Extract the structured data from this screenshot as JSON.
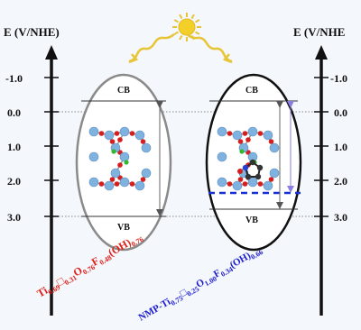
{
  "axes": {
    "left_title": "E (V/NHE)",
    "right_title": "E (V/NHE",
    "ticks": [
      "-1.0",
      "0.0",
      "1.0",
      "2.0",
      "3.0"
    ]
  },
  "bands": {
    "left_cb": "CB",
    "left_vb": "VB",
    "right_cb": "CB",
    "right_vb": "VB"
  },
  "formulas": {
    "left": {
      "parts": [
        {
          "t": "Ti",
          "s": false
        },
        {
          "t": "0.69",
          "s": true
        },
        {
          "t": "□",
          "s": false
        },
        {
          "t": "0.31",
          "s": true
        },
        {
          "t": "O",
          "s": false
        },
        {
          "t": "0.76",
          "s": true
        },
        {
          "t": "F",
          "s": false
        },
        {
          "t": "0.48",
          "s": true
        },
        {
          "t": "(OH)",
          "s": false
        },
        {
          "t": "0.76",
          "s": true
        }
      ]
    },
    "right": {
      "parts": [
        {
          "t": "NMP-Ti",
          "s": false
        },
        {
          "t": "0.75",
          "s": true
        },
        {
          "t": "□",
          "s": false
        },
        {
          "t": "0.25",
          "s": true
        },
        {
          "t": "O",
          "s": false
        },
        {
          "t": "1.00",
          "s": true
        },
        {
          "t": "F",
          "s": false
        },
        {
          "t": "0.34",
          "s": true
        },
        {
          "t": "(OH)",
          "s": false
        },
        {
          "t": "0.66",
          "s": true
        }
      ]
    }
  },
  "colors": {
    "left_formula": "#e0201a",
    "right_formula": "#1b1bd0",
    "sun": "#f3cf2a",
    "sun_rays": "#e8c437",
    "dash": "#1630d6",
    "ti_atom": "#7fb2de",
    "o_atom": "#d61e1e",
    "f_atom": "#33b833",
    "c_atom": "#333333"
  }
}
